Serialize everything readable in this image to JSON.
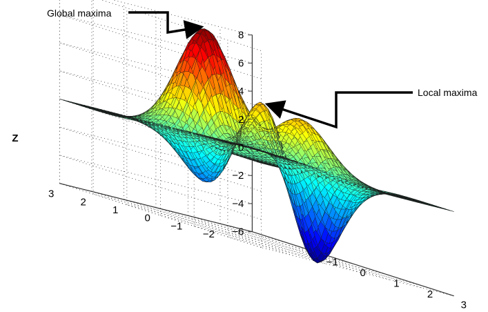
{
  "chart_data": {
    "type": "surface",
    "function": "peaks",
    "zlabel": "Z",
    "xlim": [
      -3,
      3
    ],
    "ylim": [
      -3,
      3
    ],
    "zlim": [
      -6,
      8
    ],
    "x_ticks": [
      "−1",
      "0",
      "1",
      "2",
      "3"
    ],
    "y_ticks": [
      "3",
      "2",
      "1",
      "0",
      "−1",
      "−2"
    ],
    "z_ticks": [
      "8",
      "6",
      "4",
      "2",
      "0",
      "−2",
      "−4",
      "−6"
    ],
    "grid": true,
    "colormap": "jet",
    "annotations": [
      {
        "text": "Global maxima",
        "x": -0.01,
        "y": 1.58,
        "z": 8.1
      },
      {
        "text": "Local maxima",
        "x": -0.46,
        "y": -0.63,
        "z": 3.78
      }
    ]
  }
}
